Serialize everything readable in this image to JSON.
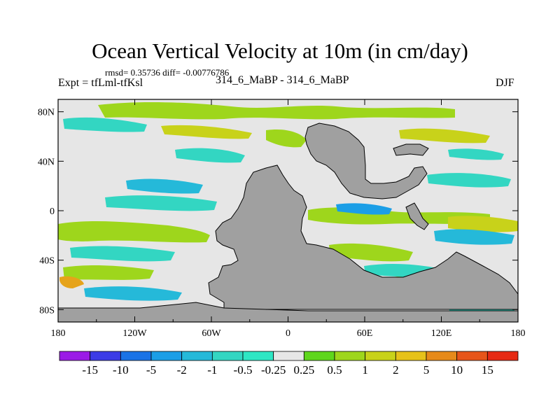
{
  "chart_data": {
    "type": "heatmap",
    "title": "Ocean Vertical Velocity at 10m (in cm/day)",
    "subtitle": "rmsd= 0.35736 diff= -0.00776786",
    "left_label": "Expt = tfLml-tfKsl",
    "center_label": "314_6_MaBP - 314_6_MaBP",
    "right_label": "DJF",
    "x_ticks": [
      "180",
      "120W",
      "60W",
      "0",
      "60E",
      "120E",
      "180"
    ],
    "y_ticks": [
      "80N",
      "40N",
      "0",
      "40S",
      "80S"
    ],
    "xlim": [
      -180,
      180
    ],
    "ylim": [
      -90,
      90
    ],
    "colorbar_labels": [
      "-15",
      "-10",
      "-5",
      "-2",
      "-1",
      "-0.5",
      "-0.25",
      "0.25",
      "0.5",
      "1",
      "2",
      "5",
      "10",
      "15"
    ],
    "colorbar_colors": [
      "#9b1be6",
      "#3c3ce6",
      "#1a73e6",
      "#1b9ee6",
      "#25b9d9",
      "#33d6c2",
      "#2ee6c4",
      "#e6e6e6",
      "#5ed61c",
      "#9ed61c",
      "#c8d21a",
      "#e6c21a",
      "#e68a1a",
      "#e6551a",
      "#e62a14"
    ]
  },
  "colors": {
    "land": "#a0a0a0",
    "neutral": "#e6e6e6"
  }
}
